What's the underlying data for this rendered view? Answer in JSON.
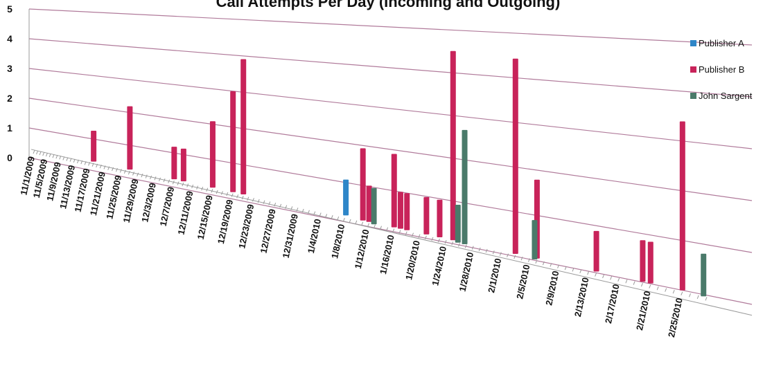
{
  "chart_data": {
    "type": "bar3d",
    "title": "Call Attempts Per Day (Incoming and Outgoing)",
    "categories": [
      "11/1/2009",
      null,
      null,
      null,
      "11/5/2009",
      null,
      null,
      null,
      "11/9/2009",
      null,
      null,
      null,
      "11/13/2009",
      null,
      null,
      null,
      "11/17/2009",
      null,
      null,
      null,
      "11/21/2009",
      null,
      null,
      null,
      "11/25/2009",
      null,
      null,
      null,
      "11/29/2009",
      null,
      null,
      null,
      "12/3/2009",
      null,
      null,
      null,
      "12/7/2009",
      null,
      null,
      null,
      "12/11/2009",
      null,
      null,
      null,
      "12/15/2009",
      null,
      null,
      null,
      "12/19/2009",
      null,
      null,
      null,
      "12/23/2009",
      null,
      null,
      null,
      "12/27/2009",
      null,
      null,
      null,
      "12/31/2009",
      null,
      null,
      null,
      "1/4/2010",
      null,
      null,
      null,
      "1/8/2010",
      null,
      null,
      null,
      "1/12/2010",
      null,
      null,
      null,
      "1/16/2010",
      null,
      null,
      null,
      "1/20/2010",
      null,
      null,
      null,
      "1/24/2010",
      null,
      null,
      null,
      "1/28/2010",
      null,
      null,
      null,
      "2/1/2010",
      null,
      null,
      null,
      "2/5/2010",
      null,
      null,
      null,
      "2/9/2010",
      null,
      null,
      null,
      "2/13/2010",
      null,
      null,
      null,
      "2/17/2010",
      null,
      null,
      null,
      "2/21/2010",
      null,
      null,
      null,
      "2/25/2010",
      null,
      null,
      null
    ],
    "series": [
      {
        "name": "Publisher A",
        "color": "#2e86c8",
        "values": [
          0,
          0,
          0,
          0,
          0,
          0,
          0,
          0,
          0,
          0,
          0,
          0,
          0,
          0,
          0,
          0,
          0,
          0,
          0,
          0,
          0,
          0,
          0,
          0,
          0,
          0,
          0,
          0,
          0,
          0,
          0,
          0,
          0,
          0,
          0,
          0,
          0,
          0,
          0,
          0,
          0,
          0,
          0,
          0,
          0,
          0,
          0,
          0,
          0,
          0,
          0,
          0,
          0,
          0,
          0,
          0,
          0,
          0,
          0,
          0,
          0,
          0,
          0,
          0,
          0,
          0,
          0,
          0,
          0,
          1,
          0,
          0,
          0,
          0,
          0,
          0,
          0,
          0,
          0,
          0,
          0,
          0,
          0,
          0,
          0,
          0,
          0,
          0,
          0,
          0,
          0,
          0,
          0,
          0,
          0,
          0,
          0,
          0,
          0,
          0,
          0,
          0,
          0,
          0,
          0,
          0,
          0,
          0,
          0,
          0,
          0,
          0,
          0,
          0,
          0,
          0,
          0,
          0,
          0,
          0
        ]
      },
      {
        "name": "Publisher B",
        "color": "#c8235a",
        "values": [
          0,
          0,
          0,
          0,
          0,
          0,
          0,
          0,
          0,
          0,
          0,
          0,
          0,
          0,
          0,
          0,
          0,
          1,
          0,
          0,
          0,
          0,
          0,
          0,
          0,
          0,
          2,
          0,
          0,
          0,
          0,
          0,
          0,
          0,
          0,
          0,
          1,
          0,
          1,
          0,
          0,
          0,
          0,
          0,
          2,
          0,
          0,
          0,
          3,
          0,
          4,
          0,
          0,
          0,
          0,
          0,
          0,
          0,
          0,
          0,
          0,
          0,
          0,
          0,
          0,
          0,
          0,
          0,
          0,
          0,
          0,
          2,
          1,
          0,
          0,
          0,
          2,
          1,
          1,
          0,
          0,
          1,
          0,
          1,
          0,
          5,
          0,
          0,
          0,
          0,
          0,
          0,
          0,
          0,
          5,
          0,
          0,
          2,
          0,
          0,
          0,
          0,
          0,
          0,
          0,
          1,
          0,
          0,
          0,
          0,
          0,
          1,
          1,
          0,
          0,
          0,
          4,
          0,
          0,
          0
        ]
      },
      {
        "name": "John Sargent",
        "color": "#4a7a6a",
        "values": [
          0,
          0,
          0,
          0,
          0,
          0,
          0,
          0,
          0,
          0,
          0,
          0,
          0,
          0,
          0,
          0,
          0,
          0,
          0,
          0,
          0,
          0,
          0,
          0,
          0,
          0,
          0,
          0,
          0,
          0,
          0,
          0,
          0,
          0,
          0,
          0,
          0,
          0,
          0,
          0,
          0,
          0,
          0,
          0,
          0,
          0,
          0,
          0,
          0,
          0,
          0,
          0,
          0,
          0,
          0,
          0,
          0,
          0,
          0,
          0,
          0,
          0,
          0,
          0,
          0,
          0,
          0,
          0,
          0,
          0,
          0,
          0,
          1,
          0,
          0,
          0,
          0,
          0,
          0,
          0,
          0,
          0,
          0,
          0,
          0,
          1,
          3,
          0,
          0,
          0,
          0,
          0,
          0,
          0,
          0,
          0,
          1,
          0,
          0,
          0,
          0,
          0,
          0,
          0,
          0,
          0,
          0,
          0,
          0,
          0,
          0,
          0,
          0,
          0,
          0,
          0,
          0,
          0,
          1,
          0
        ]
      }
    ],
    "ylim": [
      0,
      5
    ],
    "yticks": [
      0,
      1,
      2,
      3,
      4,
      5
    ],
    "grid": true,
    "legend": "right"
  }
}
